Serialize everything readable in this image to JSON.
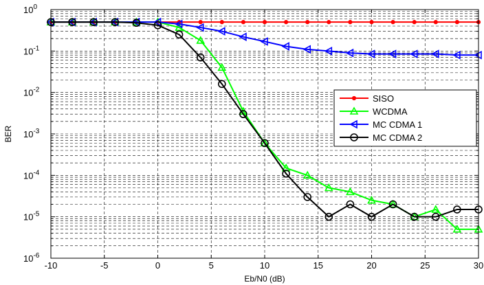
{
  "chart_data": {
    "type": "line",
    "xlabel": "Eb/N0 (dB)",
    "ylabel": "BER",
    "xlim": [
      -10,
      30
    ],
    "ylim": [
      1e-06,
      1
    ],
    "yscale": "log",
    "grid": true,
    "legend_position": "right",
    "x_ticks": [
      -10,
      -5,
      0,
      5,
      10,
      15,
      20,
      25,
      30
    ],
    "x_tick_labels": [
      "-10",
      "-5",
      "0",
      "5",
      "10",
      "15",
      "20",
      "25",
      "30"
    ],
    "y_ticks": [
      {
        "base": "10",
        "exp": "0",
        "value": 1
      },
      {
        "base": "10",
        "exp": "-1",
        "value": 0.1
      },
      {
        "base": "10",
        "exp": "-2",
        "value": 0.01
      },
      {
        "base": "10",
        "exp": "-3",
        "value": 0.001
      },
      {
        "base": "10",
        "exp": "-4",
        "value": 0.0001
      },
      {
        "base": "10",
        "exp": "-5",
        "value": 1e-05
      },
      {
        "base": "10",
        "exp": "-6",
        "value": 1e-06
      }
    ],
    "x": [
      -10,
      -8,
      -6,
      -4,
      -2,
      0,
      2,
      4,
      6,
      8,
      10,
      12,
      14,
      16,
      18,
      20,
      22,
      24,
      26,
      28,
      30
    ],
    "series": [
      {
        "name": "SISO",
        "color": "#ff0000",
        "marker": "dot",
        "values": [
          0.5,
          0.5,
          0.5,
          0.5,
          0.5,
          0.5,
          0.5,
          0.5,
          0.5,
          0.5,
          0.5,
          0.5,
          0.5,
          0.5,
          0.5,
          0.5,
          0.5,
          0.5,
          0.5,
          0.5,
          0.5
        ]
      },
      {
        "name": "WCDMA",
        "color": "#00ff00",
        "marker": "triangle-up",
        "values": [
          0.5,
          0.5,
          0.5,
          0.5,
          0.5,
          0.5,
          0.37,
          0.18,
          0.04,
          0.0035,
          0.0006,
          0.00015,
          0.0001,
          5e-05,
          4e-05,
          2.5e-05,
          2e-05,
          1e-05,
          1.5e-05,
          5e-06,
          5e-06
        ]
      },
      {
        "name": "MC CDMA 1",
        "color": "#0000ff",
        "marker": "triangle-left",
        "values": [
          0.5,
          0.5,
          0.5,
          0.5,
          0.5,
          0.5,
          0.45,
          0.37,
          0.3,
          0.22,
          0.17,
          0.13,
          0.11,
          0.1,
          0.09,
          0.085,
          0.085,
          0.085,
          0.085,
          0.08,
          0.08
        ]
      },
      {
        "name": "MC CDMA 2",
        "color": "#000000",
        "marker": "circle",
        "values": [
          0.5,
          0.5,
          0.5,
          0.5,
          0.48,
          0.42,
          0.25,
          0.07,
          0.016,
          0.003,
          0.0006,
          0.00011,
          3e-05,
          1e-05,
          2e-05,
          1e-05,
          2e-05,
          1e-05,
          1e-05,
          1.5e-05,
          1.5e-05
        ]
      }
    ]
  }
}
